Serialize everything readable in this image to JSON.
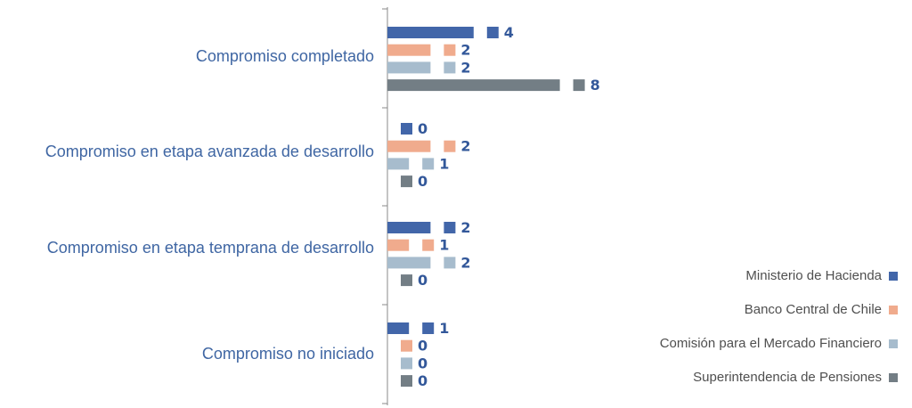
{
  "chart_data": {
    "type": "bar",
    "orientation": "horizontal",
    "title": "",
    "xlabel": "",
    "ylabel": "",
    "grid": false,
    "legend_position": "right",
    "categories": [
      "Compromiso completado",
      "Compromiso en etapa avanzada de desarrollo",
      "Compromiso en etapa temprana de desarrollo",
      "Compromiso no iniciado"
    ],
    "series": [
      {
        "name": "Ministerio de Hacienda",
        "color": "#4266a9",
        "values": [
          4,
          0,
          2,
          1
        ]
      },
      {
        "name": "Banco Central de Chile",
        "color": "#f0ab8d",
        "values": [
          2,
          2,
          1,
          0
        ]
      },
      {
        "name": "Comisión para el Mercado Financiero",
        "color": "#a7bccd",
        "values": [
          2,
          1,
          2,
          0
        ]
      },
      {
        "name": "Superintendencia de Pensiones",
        "color": "#737e85",
        "values": [
          8,
          0,
          0,
          0
        ]
      }
    ],
    "value_labels": [
      [
        "4",
        "0",
        "2",
        "1"
      ],
      [
        "2",
        "2",
        "1",
        "0"
      ],
      [
        "2",
        "1",
        "2",
        "0"
      ],
      [
        "8",
        "0",
        "0",
        "0"
      ]
    ]
  }
}
